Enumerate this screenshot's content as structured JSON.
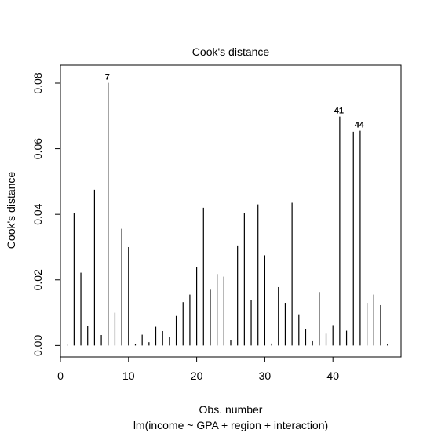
{
  "chart_data": {
    "type": "bar",
    "title": "Cook's distance",
    "xlabel": "Obs. number",
    "xlabel_sub": "lm(income ~ GPA + region + interaction)",
    "ylabel": "Cook's distance",
    "xlim": [
      0,
      50
    ],
    "ylim": [
      -0.0035,
      0.0855
    ],
    "x_ticks": [
      0,
      10,
      20,
      30,
      40
    ],
    "x_tick_labels": [
      "0",
      "10",
      "20",
      "30",
      "40"
    ],
    "y_ticks": [
      0.0,
      0.02,
      0.04,
      0.06,
      0.08
    ],
    "y_tick_labels": [
      "0.00",
      "0.02",
      "0.04",
      "0.06",
      "0.08"
    ],
    "grid": false,
    "legend": "none",
    "x": [
      1,
      2,
      3,
      4,
      5,
      6,
      7,
      8,
      9,
      10,
      11,
      12,
      13,
      14,
      15,
      16,
      17,
      18,
      19,
      20,
      21,
      22,
      23,
      24,
      25,
      26,
      27,
      28,
      29,
      30,
      31,
      32,
      33,
      34,
      35,
      36,
      37,
      38,
      39,
      40,
      41,
      42,
      43,
      44,
      45,
      46,
      47,
      48
    ],
    "values": [
      0.0002,
      0.0405,
      0.0222,
      0.006,
      0.0475,
      0.0032,
      0.0801,
      0.01,
      0.0356,
      0.03,
      0.0005,
      0.0033,
      0.001,
      0.0057,
      0.0044,
      0.0025,
      0.009,
      0.0132,
      0.0155,
      0.024,
      0.042,
      0.017,
      0.0218,
      0.021,
      0.0017,
      0.0305,
      0.0403,
      0.0138,
      0.043,
      0.0275,
      0.0006,
      0.0178,
      0.013,
      0.0435,
      0.0095,
      0.005,
      0.0013,
      0.0163,
      0.0036,
      0.0062,
      0.0698,
      0.0045,
      0.0652,
      0.0655,
      0.013,
      0.0155,
      0.0123,
      0.0003
    ],
    "annotations": [
      {
        "x": 7,
        "label": "7"
      },
      {
        "x": 41,
        "label": "41"
      },
      {
        "x": 44,
        "label": "44"
      }
    ]
  }
}
